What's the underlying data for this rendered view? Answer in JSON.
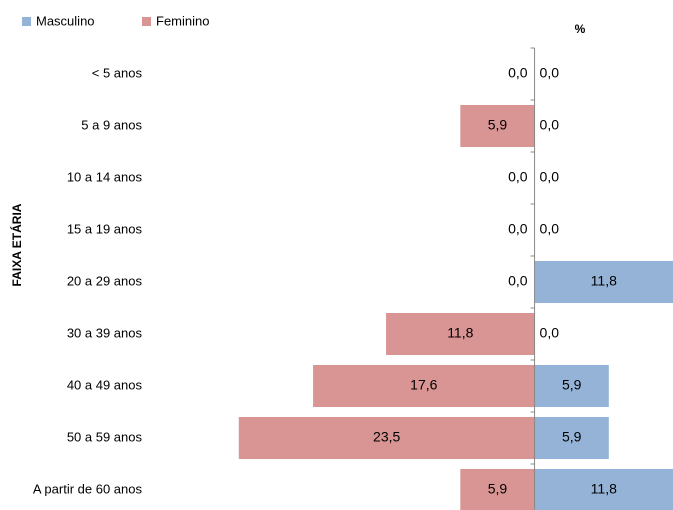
{
  "chart_data": {
    "type": "pyramid",
    "title": "%",
    "y_axis_label": "FAIXA ETÁRIA",
    "categories": [
      "< 5 anos",
      "5 a 9 anos",
      "10 a 14 anos",
      "15 a 19 anos",
      "20 a 29 anos",
      "30 a 39 anos",
      "40 a 49 anos",
      "50 a 59 anos",
      "A partir de 60 anos"
    ],
    "series": [
      {
        "name": "Masculino",
        "color": "#95b3d7",
        "side": "right",
        "values": [
          0,
          0,
          0,
          0,
          11.8,
          0,
          5.9,
          5.9,
          11.8
        ],
        "value_labels": [
          "0,0",
          "0,0",
          "0,0",
          "0,0",
          "11,8",
          "0,0",
          "5,9",
          "5,9",
          "11,8"
        ]
      },
      {
        "name": "Feminino",
        "color": "#d99594",
        "side": "left",
        "values": [
          0,
          5.9,
          0,
          0,
          0,
          11.8,
          17.6,
          23.5,
          5.9
        ],
        "value_labels": [
          "0,0",
          "5,9",
          "0,0",
          "0,0",
          "0,0",
          "11,8",
          "17,6",
          "23,5",
          "5,9"
        ]
      }
    ],
    "xlim": [
      -30,
      11
    ],
    "legend": "top-left"
  }
}
